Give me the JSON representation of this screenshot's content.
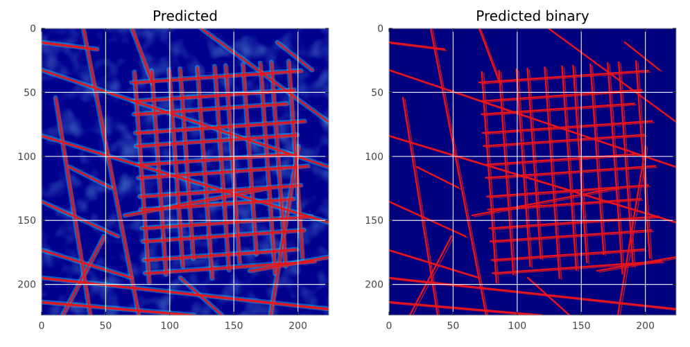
{
  "chart_data": [
    {
      "type": "heatmap",
      "title": "Predicted",
      "colormap": "jet",
      "overlay_color": "#e8141c",
      "background_value": 0.05,
      "xlim": [
        0,
        224
      ],
      "ylim": [
        224,
        0
      ],
      "xticks": [
        0,
        50,
        100,
        150,
        200
      ],
      "yticks": [
        0,
        50,
        100,
        150,
        200
      ],
      "grid": true
    },
    {
      "type": "heatmap",
      "title": "Predicted binary",
      "colormap": "jet",
      "overlay_color": "#e8141c",
      "background_value": 0.0,
      "xlim": [
        0,
        224
      ],
      "ylim": [
        224,
        0
      ],
      "xticks": [
        0,
        50,
        100,
        150,
        200
      ],
      "yticks": [
        0,
        50,
        100,
        150,
        200
      ],
      "grid": true
    }
  ]
}
